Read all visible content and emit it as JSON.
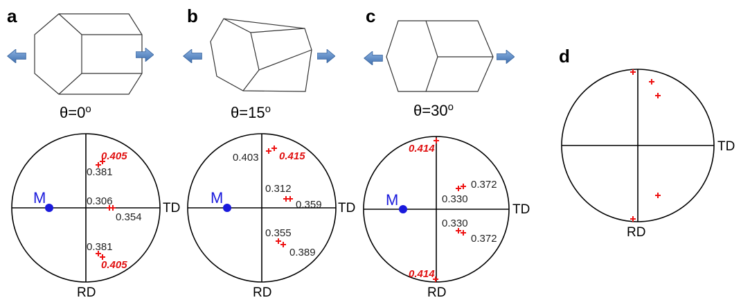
{
  "axes": {
    "horizontal": "TD",
    "vertical": "RD"
  },
  "colors": {
    "arrow": "#5a8ac6",
    "pole_mark": "#ee1111",
    "m_marker": "#1a1adc",
    "highlight_value": "#e01010"
  },
  "panels": [
    {
      "letter": "a",
      "theta": "θ=0",
      "theta_unit": "o",
      "m_label": "M",
      "values": [
        "0.405",
        "0.381",
        "0.306",
        "0.354",
        "0.381",
        "0.405"
      ]
    },
    {
      "letter": "b",
      "theta": "θ=15",
      "theta_unit": "o",
      "m_label": "M",
      "values": [
        "0.403",
        "0.415",
        "0.312",
        "0.359",
        "0.355",
        "0.389"
      ]
    },
    {
      "letter": "c",
      "theta": "θ=30",
      "theta_unit": "o",
      "m_label": "M",
      "values": [
        "0.414",
        "0.372",
        "0.330",
        "0.330",
        "0.372",
        "0.414"
      ]
    },
    {
      "letter": "d"
    }
  ]
}
